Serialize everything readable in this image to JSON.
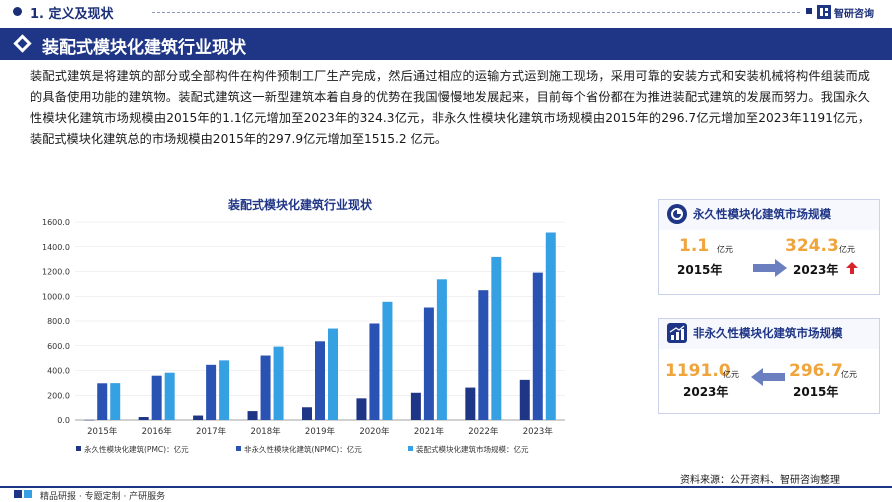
{
  "header": {
    "section_label": "1. 定义及现状",
    "brand": "智研咨询"
  },
  "banner": {
    "title": "装配式模块化建筑行业现状"
  },
  "intro_text": "装配式建筑是将建筑的部分或全部构件在构件预制工厂生产完成，然后通过相应的运输方式运到施工现场，采用可靠的安装方式和安装机械将构件组装而成的具备使用功能的建筑物。装配式建筑这一新型建筑本着自身的优势在我国慢慢地发展起来，目前每个省份都在为推进装配式建筑的发展而努力。我国永久性模块化建筑市场规模由2015年的1.1亿元增加至2023年的324.3亿元，非永久性模块化建筑市场规模由2015年的296.7亿元增加至2023年1191亿元，装配式模块化建筑总的市场规模由2015年的297.9亿元增加至1515.2 亿元。",
  "chart_data": {
    "type": "bar",
    "title": "装配式模块化建筑行业现状",
    "categories": [
      "2015年",
      "2016年",
      "2017年",
      "2018年",
      "2019年",
      "2020年",
      "2021年",
      "2022年",
      "2023年"
    ],
    "series": [
      {
        "name": "永久性模块化建筑(PMC)：亿元",
        "color": "#1f3586",
        "values": [
          1.1,
          24,
          36,
          72,
          103,
          175,
          220,
          262,
          324.3
        ]
      },
      {
        "name": "非永久性模块化建筑(NPMC)：亿元",
        "color": "#2a52b3",
        "values": [
          296.7,
          358,
          446,
          521,
          636,
          780,
          909,
          1049,
          1191
        ]
      },
      {
        "name": "装配式模块化建筑市场规模：亿元",
        "color": "#36a1e2",
        "values": [
          297.9,
          382,
          482,
          593,
          739,
          955,
          1137,
          1318,
          1515.2
        ]
      }
    ],
    "y_ticks": [
      "0.0",
      "200.0",
      "400.0",
      "600.0",
      "800.0",
      "1000.0",
      "1200.0",
      "1400.0",
      "1600.0"
    ],
    "ylim": [
      0,
      1600
    ],
    "grid": true,
    "legend_position": "bottom"
  },
  "card_permanent": {
    "title": "永久性模块化建筑市场规模",
    "from_value": "1.1",
    "from_unit": "亿元",
    "from_year": "2015年",
    "to_value": "324.3",
    "to_unit": "亿元",
    "to_year": "2023年"
  },
  "card_nonpermanent": {
    "title": "非永久性模块化建筑市场规模",
    "left_value": "1191.0",
    "left_unit": "亿元",
    "left_year": "2023年",
    "right_value": "296.7",
    "right_unit": "亿元",
    "right_year": "2015年"
  },
  "source": "资料来源：公开资料、智研咨询整理",
  "footer": "精品研报 · 专题定制 · 产研服务",
  "colors": {
    "brand_navy": "#1f3586",
    "accent_orange": "#f0a43c",
    "up_arrow_red": "#d8232a"
  }
}
